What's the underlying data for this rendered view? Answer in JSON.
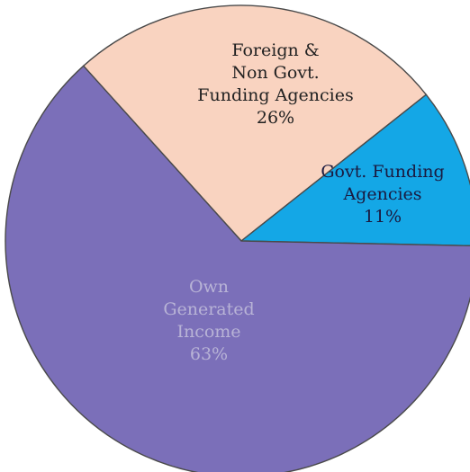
{
  "chart_data": {
    "type": "pie",
    "title": "",
    "start_angle_deg": 129,
    "direction": "clockwise",
    "slices": [
      {
        "lines": [
          "Foreign &",
          "Non Govt.",
          "Funding Agencies",
          "26%"
        ],
        "value": 26,
        "color": "#f9d3c0",
        "label_color": "#222222"
      },
      {
        "lines": [
          "Govt. Funding",
          "Agencies",
          "11%"
        ],
        "value": 11,
        "color": "#14a7e6",
        "label_color": "#1a1a40"
      },
      {
        "lines": [
          "Own",
          "Generated",
          "Income",
          "63%"
        ],
        "value": 63,
        "color": "#7b6fb9",
        "label_color": "#b8b3d6"
      }
    ]
  }
}
